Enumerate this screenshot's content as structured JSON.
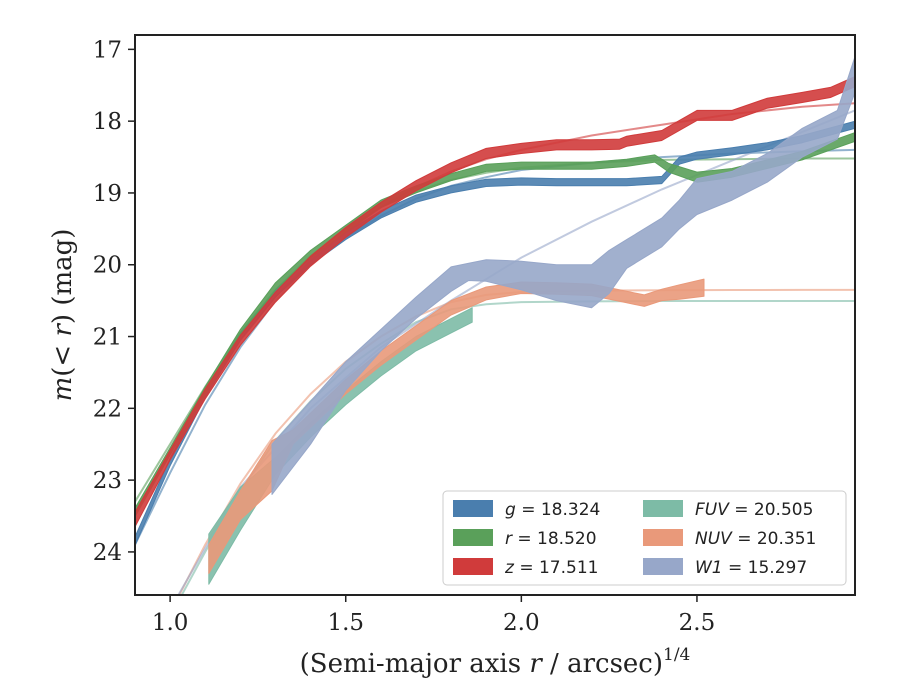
{
  "chart_data": {
    "type": "line",
    "xlabel": "(Semi-major axis r / arcsec)",
    "xlabel_parts": [
      "(Semi-major axis ",
      "r",
      " / arcsec)",
      "1/4"
    ],
    "ylabel": "m(< r) (mag)",
    "ylabel_parts": [
      "m",
      "(< ",
      "r",
      ") (mag)"
    ],
    "xlim": [
      0.9,
      2.95
    ],
    "ylim": [
      24.6,
      16.8
    ],
    "y_inverted": true,
    "xticks": [
      1.0,
      1.5,
      2.0,
      2.5
    ],
    "xtick_labels": [
      "1.0",
      "1.5",
      "2.0",
      "2.5"
    ],
    "yticks": [
      17,
      18,
      19,
      20,
      21,
      22,
      23,
      24
    ],
    "ytick_labels": [
      "17",
      "18",
      "19",
      "20",
      "21",
      "22",
      "23",
      "24"
    ],
    "grid": false,
    "legend_placement": "lower-right",
    "series": [
      {
        "name": "g = 18.324",
        "band": "g",
        "value": "18.324",
        "color": "#4a7eae",
        "x": [
          0.9,
          1.0,
          1.1,
          1.2,
          1.3,
          1.4,
          1.5,
          1.6,
          1.7,
          1.8,
          1.9,
          2.0,
          2.1,
          2.2,
          2.3,
          2.4,
          2.45,
          2.5,
          2.6,
          2.7,
          2.8,
          2.95
        ],
        "y": [
          23.85,
          22.75,
          21.8,
          21.0,
          20.4,
          19.95,
          19.6,
          19.3,
          19.08,
          18.95,
          18.86,
          18.84,
          18.85,
          18.85,
          18.85,
          18.82,
          18.55,
          18.48,
          18.42,
          18.35,
          18.25,
          18.05
        ],
        "band_halfwidth": [
          0.06,
          0.05,
          0.05,
          0.05,
          0.05,
          0.05,
          0.05,
          0.05,
          0.05,
          0.05,
          0.05,
          0.05,
          0.05,
          0.05,
          0.05,
          0.05,
          0.05,
          0.05,
          0.05,
          0.05,
          0.05,
          0.05
        ],
        "model_x": [
          0.9,
          1.0,
          1.1,
          1.2,
          1.3,
          1.4,
          1.5,
          1.6,
          1.7,
          1.8,
          1.9,
          2.0,
          2.2,
          2.4,
          2.6,
          2.8,
          2.95
        ],
        "model_y": [
          23.9,
          22.9,
          21.95,
          21.15,
          20.5,
          20.0,
          19.62,
          19.32,
          19.08,
          18.9,
          18.78,
          18.68,
          18.58,
          18.5,
          18.45,
          18.42,
          18.4
        ]
      },
      {
        "name": "r = 18.520",
        "band": "r",
        "value": "18.520",
        "color": "#5aa05a",
        "x": [
          0.9,
          1.0,
          1.1,
          1.2,
          1.3,
          1.4,
          1.5,
          1.6,
          1.7,
          1.8,
          1.9,
          2.0,
          2.1,
          2.2,
          2.3,
          2.38,
          2.42,
          2.5,
          2.6,
          2.7,
          2.8,
          2.95
        ],
        "y": [
          23.45,
          22.6,
          21.75,
          20.95,
          20.3,
          19.85,
          19.5,
          19.15,
          18.95,
          18.78,
          18.65,
          18.62,
          18.62,
          18.62,
          18.58,
          18.52,
          18.65,
          18.78,
          18.72,
          18.6,
          18.48,
          18.22
        ],
        "band_halfwidth": [
          0.06,
          0.05,
          0.05,
          0.05,
          0.05,
          0.05,
          0.05,
          0.05,
          0.05,
          0.05,
          0.05,
          0.05,
          0.05,
          0.05,
          0.05,
          0.05,
          0.06,
          0.07,
          0.06,
          0.06,
          0.06,
          0.06
        ],
        "model_x": [
          0.9,
          1.0,
          1.1,
          1.2,
          1.3,
          1.4,
          1.5,
          1.6,
          1.7,
          1.8,
          1.9,
          2.0,
          2.2,
          2.4,
          2.6,
          2.8,
          2.95
        ],
        "model_y": [
          23.3,
          22.5,
          21.7,
          20.95,
          20.35,
          19.88,
          19.5,
          19.2,
          18.98,
          18.82,
          18.72,
          18.65,
          18.58,
          18.54,
          18.53,
          18.52,
          18.52
        ]
      },
      {
        "name": "z = 17.511",
        "band": "z",
        "value": "17.511",
        "color": "#d03b3b",
        "x": [
          0.9,
          1.0,
          1.1,
          1.2,
          1.3,
          1.4,
          1.5,
          1.6,
          1.7,
          1.8,
          1.9,
          2.0,
          2.1,
          2.2,
          2.28,
          2.3,
          2.4,
          2.5,
          2.6,
          2.7,
          2.8,
          2.88,
          2.95
        ],
        "y": [
          23.55,
          22.65,
          21.8,
          21.05,
          20.45,
          19.95,
          19.55,
          19.2,
          18.9,
          18.65,
          18.45,
          18.38,
          18.33,
          18.33,
          18.32,
          18.28,
          18.2,
          17.92,
          17.92,
          17.75,
          17.67,
          17.6,
          17.45
        ],
        "band_halfwidth": [
          0.1,
          0.07,
          0.07,
          0.07,
          0.07,
          0.07,
          0.07,
          0.07,
          0.07,
          0.07,
          0.07,
          0.07,
          0.07,
          0.07,
          0.07,
          0.07,
          0.07,
          0.07,
          0.07,
          0.07,
          0.07,
          0.07,
          0.07
        ],
        "model_x": [
          0.9,
          1.0,
          1.1,
          1.2,
          1.3,
          1.4,
          1.5,
          1.6,
          1.7,
          1.8,
          1.9,
          2.0,
          2.2,
          2.4,
          2.6,
          2.8,
          2.95
        ],
        "model_y": [
          23.45,
          22.6,
          21.8,
          21.05,
          20.45,
          19.95,
          19.55,
          19.2,
          18.92,
          18.7,
          18.53,
          18.4,
          18.2,
          18.05,
          17.9,
          17.8,
          17.75
        ]
      },
      {
        "name": "FUV = 20.505",
        "band": "FUV",
        "value": "20.505",
        "color": "#7dbba6",
        "x": [
          1.11,
          1.2,
          1.3,
          1.4,
          1.5,
          1.6,
          1.7,
          1.8,
          1.86
        ],
        "y": [
          24.1,
          23.4,
          22.8,
          22.3,
          21.85,
          21.45,
          21.1,
          20.85,
          20.7
        ],
        "band_halfwidth": [
          0.35,
          0.3,
          0.12,
          0.1,
          0.1,
          0.1,
          0.1,
          0.1,
          0.1
        ],
        "model_x": [
          1.0,
          1.1,
          1.2,
          1.3,
          1.4,
          1.5,
          1.6,
          1.7,
          1.8,
          1.9,
          2.0,
          2.2,
          2.4,
          2.6,
          2.8,
          2.95
        ],
        "model_y": [
          24.9,
          24.0,
          23.15,
          22.45,
          21.9,
          21.45,
          21.1,
          20.8,
          20.62,
          20.55,
          20.52,
          20.51,
          20.505,
          20.505,
          20.505,
          20.505
        ]
      },
      {
        "name": "NUV = 20.351",
        "band": "NUV",
        "value": "20.351",
        "color": "#e9997a",
        "x": [
          1.11,
          1.2,
          1.29,
          1.35,
          1.5,
          1.6,
          1.7,
          1.8,
          1.9,
          2.0,
          2.1,
          2.2,
          2.3,
          2.35,
          2.4,
          2.45,
          2.52
        ],
        "y": [
          24.1,
          23.35,
          22.8,
          22.4,
          21.7,
          21.3,
          20.95,
          20.6,
          20.4,
          20.32,
          20.33,
          20.35,
          20.45,
          20.5,
          20.42,
          20.38,
          20.32
        ],
        "band_halfwidth": [
          0.2,
          0.2,
          0.35,
          0.1,
          0.1,
          0.1,
          0.1,
          0.1,
          0.09,
          0.08,
          0.08,
          0.08,
          0.08,
          0.08,
          0.08,
          0.1,
          0.12
        ],
        "model_x": [
          1.0,
          1.1,
          1.2,
          1.3,
          1.4,
          1.5,
          1.6,
          1.7,
          1.8,
          1.9,
          2.0,
          2.2,
          2.4,
          2.6,
          2.8,
          2.95
        ],
        "model_y": [
          24.85,
          23.9,
          23.05,
          22.35,
          21.8,
          21.35,
          21.0,
          20.72,
          20.52,
          20.42,
          20.38,
          20.36,
          20.355,
          20.352,
          20.351,
          20.351
        ]
      },
      {
        "name": "W1 = 15.297",
        "band": "W1",
        "value": "15.297",
        "color": "#97a7c9",
        "x": [
          1.29,
          1.4,
          1.5,
          1.6,
          1.7,
          1.8,
          1.85,
          1.9,
          2.0,
          2.1,
          2.2,
          2.25,
          2.3,
          2.4,
          2.45,
          2.5,
          2.6,
          2.7,
          2.8,
          2.9,
          2.95
        ],
        "y": [
          22.85,
          22.2,
          21.55,
          21.05,
          20.6,
          20.2,
          20.1,
          20.08,
          20.15,
          20.25,
          20.3,
          20.1,
          19.85,
          19.55,
          19.3,
          19.05,
          18.9,
          18.65,
          18.3,
          18.05,
          17.35
        ],
        "band_halfwidth": [
          0.35,
          0.3,
          0.2,
          0.15,
          0.15,
          0.17,
          0.12,
          0.15,
          0.2,
          0.25,
          0.3,
          0.3,
          0.2,
          0.2,
          0.2,
          0.25,
          0.2,
          0.2,
          0.2,
          0.2,
          0.25
        ],
        "model_x": [
          1.0,
          1.2,
          1.4,
          1.6,
          1.8,
          2.0,
          2.2,
          2.4,
          2.6,
          2.8,
          2.95
        ],
        "model_y": [
          24.8,
          23.1,
          22.0,
          21.15,
          20.5,
          19.9,
          19.4,
          18.95,
          18.55,
          18.15,
          17.85
        ]
      }
    ]
  }
}
